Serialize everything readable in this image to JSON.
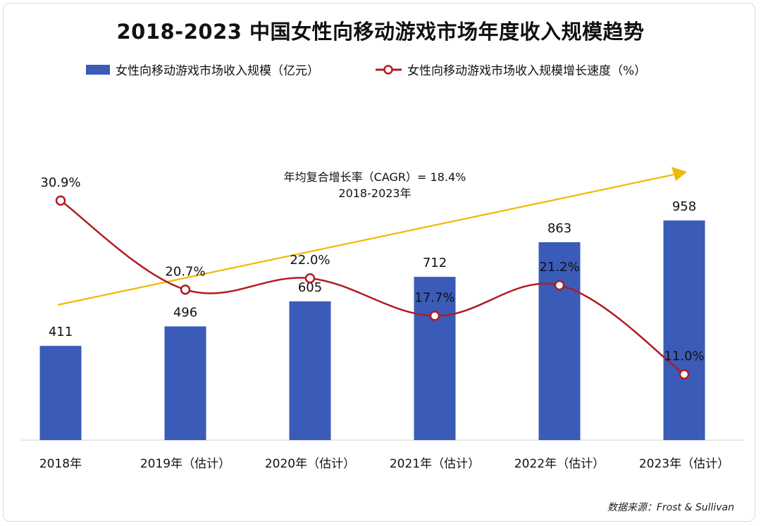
{
  "chart_data": {
    "type": "bar",
    "title": "2018-2023  中国女性向移动游戏市场年度收入规模趋势",
    "categories": [
      "2018年",
      "2019年（估计）",
      "2020年（估计）",
      "2021年（估计）",
      "2022年（估计）",
      "2023年（估计）"
    ],
    "bar_series": {
      "name": "女性向移动游戏市场收入规模（亿元）",
      "values": [
        411,
        496,
        605,
        712,
        863,
        958
      ],
      "labels": [
        "411",
        "496",
        "605",
        "712",
        "863",
        "958"
      ],
      "color": "#3a5bb8"
    },
    "line_series": {
      "name": "女性向移动游戏市场收入规模增长速度（%）",
      "values": [
        30.9,
        20.7,
        22.0,
        17.7,
        21.2,
        11.0
      ],
      "labels": [
        "30.9%",
        "20.7%",
        "22.0%",
        "17.7%",
        "21.2%",
        "11.0%"
      ],
      "color": "#b01c22"
    },
    "trend_annotation": {
      "line1": "年均复合增长率（CAGR）= 18.4%",
      "line2": "2018-2023年",
      "color": "#f2b705"
    },
    "legend_position": "top",
    "grid": false
  },
  "source": "数据来源：Frost & Sullivan"
}
